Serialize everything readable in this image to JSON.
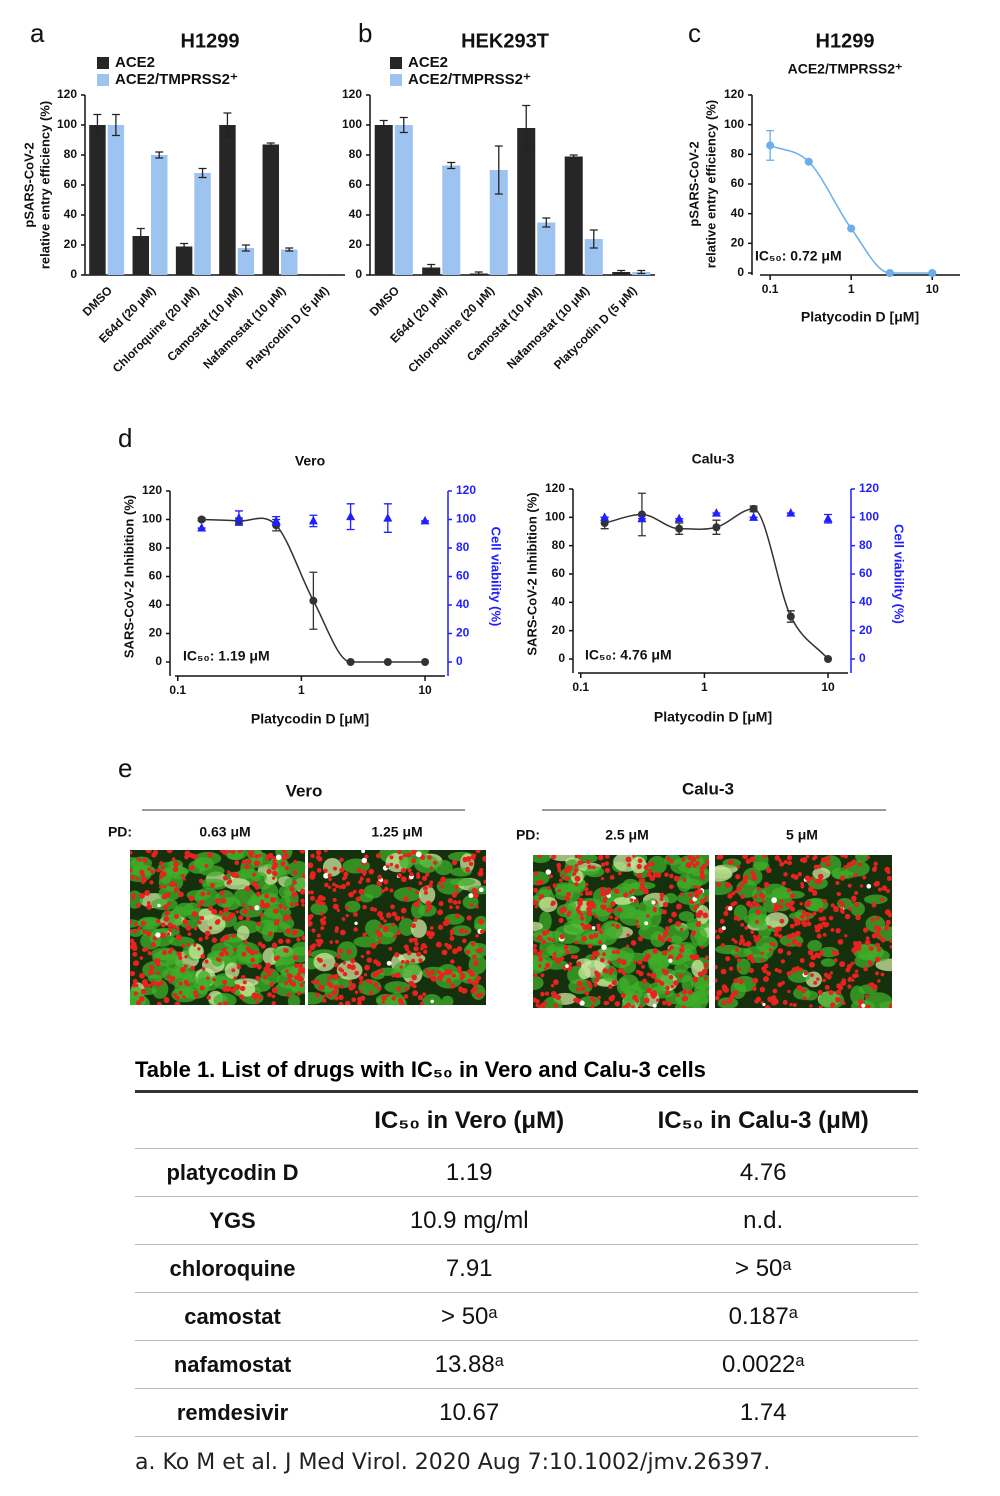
{
  "panel_labels": [
    "a",
    "b",
    "c",
    "d",
    "e"
  ],
  "chart_data": [
    {
      "type": "bar",
      "title": "H1299",
      "categories": [
        "DMSO",
        "E64d (20 μM)",
        "Chloroquine (20 μM)",
        "Camostat (10 μM)",
        "Nafamostat (10 μM)",
        "Platycodin D (5 μM)"
      ],
      "series": [
        {
          "name": "ACE2",
          "color": "#262626",
          "values": [
            100,
            26,
            19,
            100,
            87,
            0
          ],
          "errors": [
            7,
            5,
            2,
            8,
            1,
            0
          ]
        },
        {
          "name": "ACE2/TMPRSS2⁺",
          "color": "#9dc3f0",
          "values": [
            100,
            80,
            68,
            18,
            17,
            0
          ],
          "errors": [
            7,
            2,
            3,
            2,
            1,
            0
          ]
        }
      ],
      "ylabel": [
        "pSARS-CoV-2",
        "relative entry efficiency (%)"
      ],
      "ylim": [
        0,
        120
      ],
      "yticks": [
        0,
        20,
        40,
        60,
        80,
        100,
        120
      ]
    },
    {
      "type": "bar",
      "title": "HEK293T",
      "categories": [
        "DMSO",
        "E64d (20 μM)",
        "Chloroquine (20 μM)",
        "Camostat (10 μM)",
        "Nafamostat (10 μM)",
        "Platycodin D (5 μM)"
      ],
      "series": [
        {
          "name": "ACE2",
          "color": "#262626",
          "values": [
            100,
            5,
            1,
            98,
            79,
            2
          ],
          "errors": [
            3,
            2,
            1,
            15,
            1,
            1
          ]
        },
        {
          "name": "ACE2/TMPRSS2⁺",
          "color": "#9dc3f0",
          "values": [
            100,
            73,
            70,
            35,
            24,
            2
          ],
          "errors": [
            5,
            2,
            16,
            3,
            6,
            1
          ]
        }
      ],
      "ylim": [
        0,
        120
      ],
      "yticks": [
        0,
        20,
        40,
        60,
        80,
        100,
        120
      ]
    },
    {
      "type": "dose-response",
      "title": "H1299",
      "subtitle": "ACE2/TMPRSS2⁺",
      "x": [
        0.1,
        0.3,
        1,
        3,
        10
      ],
      "series": [
        {
          "color": "#6aaeea",
          "marker": "circle",
          "fit_curve": true,
          "values": [
            86,
            75,
            30,
            0,
            0
          ],
          "errors": [
            10,
            0,
            0,
            0,
            0
          ]
        }
      ],
      "annotation": "IC₅₀: 0.72 μM",
      "xlabel": "Platycodin D [μM]",
      "ylabel": [
        "pSARS-CoV-2",
        "relative entry efficiency (%)"
      ],
      "xscale": "log",
      "xlim": [
        0.075,
        22
      ],
      "xticks": [
        0.1,
        1,
        10
      ],
      "ylim": [
        0,
        120
      ],
      "yticks": [
        0,
        20,
        40,
        60,
        80,
        100,
        120
      ]
    },
    {
      "type": "dose-response",
      "title": "Vero",
      "x": [
        0.156,
        0.3125,
        0.625,
        1.25,
        2.5,
        5,
        10
      ],
      "series": [
        {
          "color": "#333333",
          "marker": "circle",
          "fit_curve": true,
          "values": [
            100,
            99,
            96,
            43,
            0,
            0,
            0
          ],
          "errors": [
            1,
            2,
            4,
            20,
            0,
            0,
            0
          ]
        },
        {
          "axis": "y2",
          "color": "#1f1fff",
          "marker": "triangle",
          "fit_curve": false,
          "values": [
            94,
            101,
            99,
            99,
            102,
            101,
            99
          ],
          "errors": [
            0,
            5,
            3,
            4,
            9,
            10,
            0
          ]
        }
      ],
      "annotation": "IC₅₀: 1.19 μM",
      "xlabel": "Platycodin D [μM]",
      "ylabel": [
        "SARS-CoV-2 Inhibition (%)"
      ],
      "y2label": "Cell viability (%)",
      "xscale": "log",
      "xlim": [
        0.095,
        14.5
      ],
      "xticks": [
        0.1,
        1,
        10
      ],
      "ylim": [
        0,
        120
      ],
      "yticks": [
        0,
        20,
        40,
        60,
        80,
        100,
        120
      ],
      "y2lim": [
        0,
        120
      ],
      "y2ticks": [
        0,
        20,
        40,
        60,
        80,
        100,
        120
      ]
    },
    {
      "type": "dose-response",
      "title": "Calu-3",
      "x": [
        0.156,
        0.3125,
        0.625,
        1.25,
        2.5,
        5,
        10
      ],
      "series": [
        {
          "color": "#333333",
          "marker": "circle",
          "fit_curve": true,
          "values": [
            96,
            102,
            92,
            93,
            106,
            30,
            0
          ],
          "errors": [
            4,
            15,
            4,
            5,
            2,
            4,
            0
          ]
        },
        {
          "axis": "y2",
          "color": "#1f1fff",
          "marker": "triangle",
          "fit_curve": false,
          "values": [
            100,
            99,
            99,
            103,
            100,
            103,
            99
          ],
          "errors": [
            0,
            0,
            0,
            0,
            0,
            0,
            3
          ]
        }
      ],
      "annotation": "IC₅₀: 4.76 μM",
      "xlabel": "Platycodin D [μM]",
      "ylabel": [
        "SARS-CoV-2 Inhibition (%)"
      ],
      "y2label": "Cell viability (%)",
      "xscale": "log",
      "xlim": [
        0.095,
        14.5
      ],
      "xticks": [
        0.1,
        1,
        10
      ],
      "ylim": [
        0,
        120
      ],
      "yticks": [
        0,
        20,
        40,
        60,
        80,
        100,
        120
      ],
      "y2lim": [
        0,
        120
      ],
      "y2ticks": [
        0,
        20,
        40,
        60,
        80,
        100,
        120
      ]
    }
  ],
  "image_panel": {
    "groups": [
      {
        "title": "Vero",
        "prefix": "PD:",
        "conditions": [
          "0.63 μM",
          "1.25 μM"
        ]
      },
      {
        "title": "Calu-3",
        "prefix": "PD:",
        "conditions": [
          "2.5 μM",
          "5 μM"
        ]
      }
    ]
  },
  "table": {
    "title": "Table 1. List of drugs with IC₅₀ in Vero and Calu-3 cells",
    "columns": [
      "IC₅₀ in Vero (μM)",
      "IC₅₀ in Calu-3 (μM)"
    ],
    "rows": [
      [
        "platycodin D",
        "1.19",
        "4.76"
      ],
      [
        "YGS",
        "10.9 mg/ml",
        "n.d."
      ],
      [
        "chloroquine",
        "7.91",
        "> 50ᵃ"
      ],
      [
        "camostat",
        "> 50ᵃ",
        "0.187ᵃ"
      ],
      [
        "nafamostat",
        "13.88ᵃ",
        "0.0022ᵃ"
      ],
      [
        "remdesivir",
        "10.67",
        "1.74"
      ]
    ],
    "footnote": "a. Ko M et al. J Med Virol. 2020 Aug 7:10.1002/jmv.26397."
  }
}
